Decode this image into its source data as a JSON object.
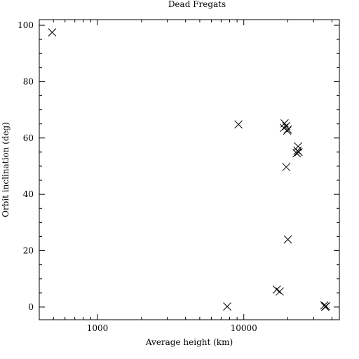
{
  "chart_data": {
    "type": "scatter",
    "title": "Dead Fregats",
    "xlabel": "Average height (km)",
    "ylabel": "Orbit inclination (deg)",
    "xscale": "log",
    "xlim": [
      400,
      45000
    ],
    "ylim": [
      -4.5,
      102
    ],
    "x_tick_labels": [
      "1000",
      "10000"
    ],
    "x_ticks": [
      1000,
      10000
    ],
    "y_ticks": [
      0,
      20,
      40,
      60,
      80,
      100
    ],
    "y_tick_labels": [
      "0",
      "20",
      "40",
      "60",
      "80",
      "100"
    ],
    "marker": "x",
    "grid": false,
    "points": [
      {
        "x": 490,
        "y": 97.5
      },
      {
        "x": 9200,
        "y": 64.8
      },
      {
        "x": 7700,
        "y": 0.2
      },
      {
        "x": 19000,
        "y": 65.2
      },
      {
        "x": 19500,
        "y": 64.2
      },
      {
        "x": 18800,
        "y": 63.6
      },
      {
        "x": 20000,
        "y": 63.0
      },
      {
        "x": 19800,
        "y": 62.6
      },
      {
        "x": 23500,
        "y": 57.0
      },
      {
        "x": 23300,
        "y": 55.5
      },
      {
        "x": 23700,
        "y": 55.0
      },
      {
        "x": 23000,
        "y": 54.6
      },
      {
        "x": 19500,
        "y": 49.7
      },
      {
        "x": 20000,
        "y": 24.0
      },
      {
        "x": 16800,
        "y": 6.2
      },
      {
        "x": 17600,
        "y": 5.5
      },
      {
        "x": 35500,
        "y": 0.6
      },
      {
        "x": 36500,
        "y": 0.3
      },
      {
        "x": 36000,
        "y": 0.1
      }
    ]
  }
}
